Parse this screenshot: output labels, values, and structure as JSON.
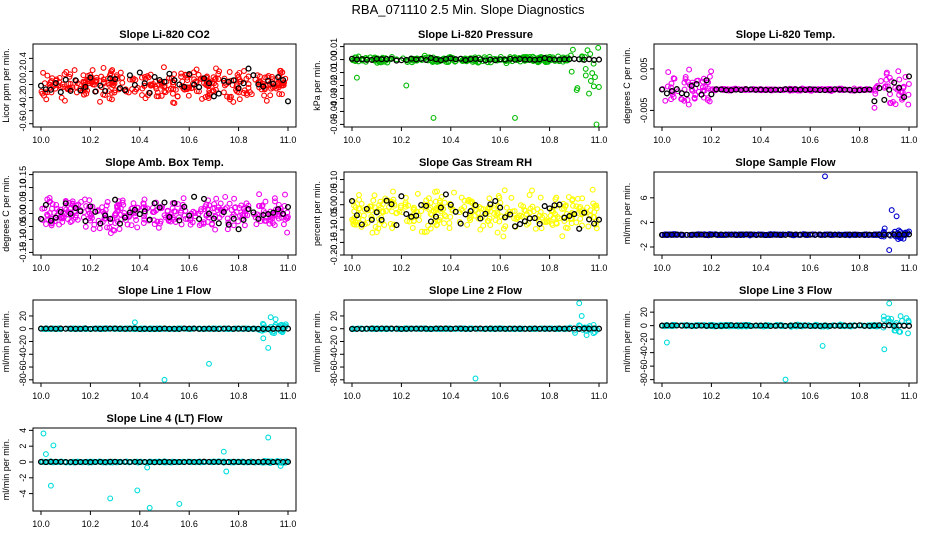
{
  "page_title": "RBA_071110  2.5 Min. Slope Diagnostics",
  "chart_data": [
    {
      "type": "scatter",
      "title": "Slope Li-820 CO2",
      "ylabel": "Licor ppm per min.",
      "color": "#ff0000",
      "xlim": [
        10.0,
        11.0
      ],
      "ylim": [
        -0.65,
        0.62
      ],
      "xticks": [
        "10.0",
        "10.2",
        "10.4",
        "10.6",
        "10.8",
        "11.0"
      ],
      "yticks": [
        "-0.6",
        "-0.4",
        "-0.2",
        "0.0",
        "0.2",
        "0.4"
      ],
      "pattern": "band",
      "center": 0.0,
      "spread": 0.33
    },
    {
      "type": "scatter",
      "title": "Slope Li-820 Pressure",
      "ylabel": "kPa per min.",
      "color": "#00bb00",
      "xlim": [
        10.0,
        11.0
      ],
      "ylim": [
        -0.052,
        0.012
      ],
      "xticks": [
        "10.0",
        "10.2",
        "10.4",
        "10.6",
        "10.8",
        "11.0"
      ],
      "yticks": [
        "-0.05",
        "-0.04",
        "-0.03",
        "-0.02",
        "-0.01",
        "0.00",
        "0.01"
      ],
      "pattern": "tight",
      "center": 0.0,
      "spread": 0.007,
      "outliers": [
        [
          10.33,
          -0.045
        ],
        [
          10.66,
          -0.045
        ],
        [
          10.99,
          -0.05
        ],
        [
          10.22,
          -0.02
        ],
        [
          10.02,
          -0.014
        ]
      ]
    },
    {
      "type": "scatter",
      "title": "Slope Li-820 Temp.",
      "ylabel": "degrees C per min.",
      "color": "#ee00ee",
      "xlim": [
        10.0,
        11.0
      ],
      "ylim": [
        -0.009,
        0.011
      ],
      "xticks": [
        "10.0",
        "10.2",
        "10.4",
        "10.6",
        "10.8",
        "11.0"
      ],
      "yticks": [
        "-0.005",
        "0.005"
      ],
      "pattern": "flatends",
      "center": 0.0,
      "spread": 0.006
    },
    {
      "type": "scatter",
      "title": "Slope Amb. Box Temp.",
      "ylabel": "degrees C per min.",
      "color": "#ee00ee",
      "xlim": [
        10.0,
        11.0
      ],
      "ylim": [
        -0.16,
        0.16
      ],
      "xticks": [
        "10.0",
        "10.2",
        "10.4",
        "10.6",
        "10.8",
        "11.0"
      ],
      "yticks": [
        "-0.15",
        "-0.10",
        "-0.05",
        "0.00",
        "0.05",
        "0.10",
        "0.15"
      ],
      "pattern": "band",
      "center": 0.0,
      "spread": 0.09
    },
    {
      "type": "scatter",
      "title": "Slope Gas Stream RH",
      "ylabel": "percent per min.",
      "color": "#ffff00",
      "xlim": [
        10.0,
        11.0
      ],
      "ylim": [
        -0.2,
        0.13
      ],
      "xticks": [
        "10.0",
        "10.2",
        "10.4",
        "10.6",
        "10.8",
        "11.0"
      ],
      "yticks": [
        "-0.20",
        "-0.15",
        "-0.10",
        "-0.05",
        "0.00",
        "0.05",
        "0.10"
      ],
      "pattern": "band",
      "center": -0.03,
      "spread": 0.11
    },
    {
      "type": "scatter",
      "title": "Slope Sample Flow",
      "ylabel": "ml/min per min.",
      "color": "#0000cc",
      "xlim": [
        10.0,
        11.0
      ],
      "ylim": [
        -3.3,
        10.2
      ],
      "xticks": [
        "10.0",
        "10.2",
        "10.4",
        "10.6",
        "10.8",
        "11.0"
      ],
      "yticks": [
        "-2",
        "2",
        "6"
      ],
      "pattern": "tightend",
      "center": 0.0,
      "spread": 0.25,
      "outliers": [
        [
          10.66,
          9.5
        ],
        [
          10.93,
          4.0
        ],
        [
          10.95,
          3.0
        ],
        [
          10.92,
          -2.5
        ]
      ]
    },
    {
      "type": "scatter",
      "title": "Slope Line 1 Flow",
      "ylabel": "ml/min per min.",
      "color": "#00dddd",
      "xlim": [
        10.0,
        11.0
      ],
      "ylim": [
        -85,
        45
      ],
      "xticks": [
        "10.0",
        "10.2",
        "10.4",
        "10.6",
        "10.8",
        "11.0"
      ],
      "yticks": [
        "-80",
        "-60",
        "-40",
        "-20",
        "0",
        "20"
      ],
      "pattern": "flatend",
      "center": 0.0,
      "spread": 2,
      "outliers": [
        [
          10.38,
          10
        ],
        [
          10.5,
          -80
        ],
        [
          10.68,
          -55
        ],
        [
          10.92,
          -30
        ],
        [
          10.93,
          18
        ],
        [
          10.95,
          15
        ],
        [
          10.9,
          -15
        ]
      ]
    },
    {
      "type": "scatter",
      "title": "Slope Line 2 Flow",
      "ylabel": "ml/min per min.",
      "color": "#00dddd",
      "xlim": [
        10.0,
        11.0
      ],
      "ylim": [
        -85,
        45
      ],
      "xticks": [
        "10.0",
        "10.2",
        "10.4",
        "10.6",
        "10.8",
        "11.0"
      ],
      "yticks": [
        "-80",
        "-60",
        "-40",
        "-20",
        "0",
        "20"
      ],
      "pattern": "flatend",
      "center": 0.0,
      "spread": 2,
      "outliers": [
        [
          10.5,
          -78
        ],
        [
          10.92,
          40
        ],
        [
          10.93,
          20
        ],
        [
          10.95,
          -10
        ]
      ]
    },
    {
      "type": "scatter",
      "title": "Slope Line 3 Flow",
      "ylabel": "ml/min per min.",
      "color": "#00dddd",
      "xlim": [
        10.0,
        11.0
      ],
      "ylim": [
        -85,
        38
      ],
      "xticks": [
        "10.0",
        "10.2",
        "10.4",
        "10.6",
        "10.8",
        "11.0"
      ],
      "yticks": [
        "-80",
        "-60",
        "-40",
        "-20",
        "0",
        "20"
      ],
      "pattern": "flatend",
      "center": 0.0,
      "spread": 4,
      "outliers": [
        [
          10.5,
          -80
        ],
        [
          10.65,
          -30
        ],
        [
          10.9,
          -35
        ],
        [
          10.92,
          33
        ],
        [
          10.02,
          -25
        ]
      ]
    },
    {
      "type": "scatter",
      "title": "Slope Line 4 (LT) Flow",
      "ylabel": "ml/min per min.",
      "color": "#00dddd",
      "xlim": [
        10.0,
        11.0
      ],
      "ylim": [
        -6.2,
        4.3
      ],
      "xticks": [
        "10.0",
        "10.2",
        "10.4",
        "10.6",
        "10.8",
        "11.0"
      ],
      "yticks": [
        "-4",
        "-2",
        "0",
        "2",
        "4"
      ],
      "pattern": "flat",
      "center": 0.0,
      "spread": 0.2,
      "outliers": [
        [
          10.01,
          3.6
        ],
        [
          10.02,
          1.0
        ],
        [
          10.04,
          -3.0
        ],
        [
          10.05,
          2.1
        ],
        [
          10.28,
          -4.6
        ],
        [
          10.39,
          -3.6
        ],
        [
          10.43,
          -0.7
        ],
        [
          10.44,
          -5.8
        ],
        [
          10.48,
          -6.0
        ],
        [
          10.56,
          -5.3
        ],
        [
          10.74,
          1.3
        ],
        [
          10.75,
          -1.2
        ],
        [
          10.92,
          3.1
        ],
        [
          10.97,
          -0.5
        ]
      ]
    }
  ]
}
